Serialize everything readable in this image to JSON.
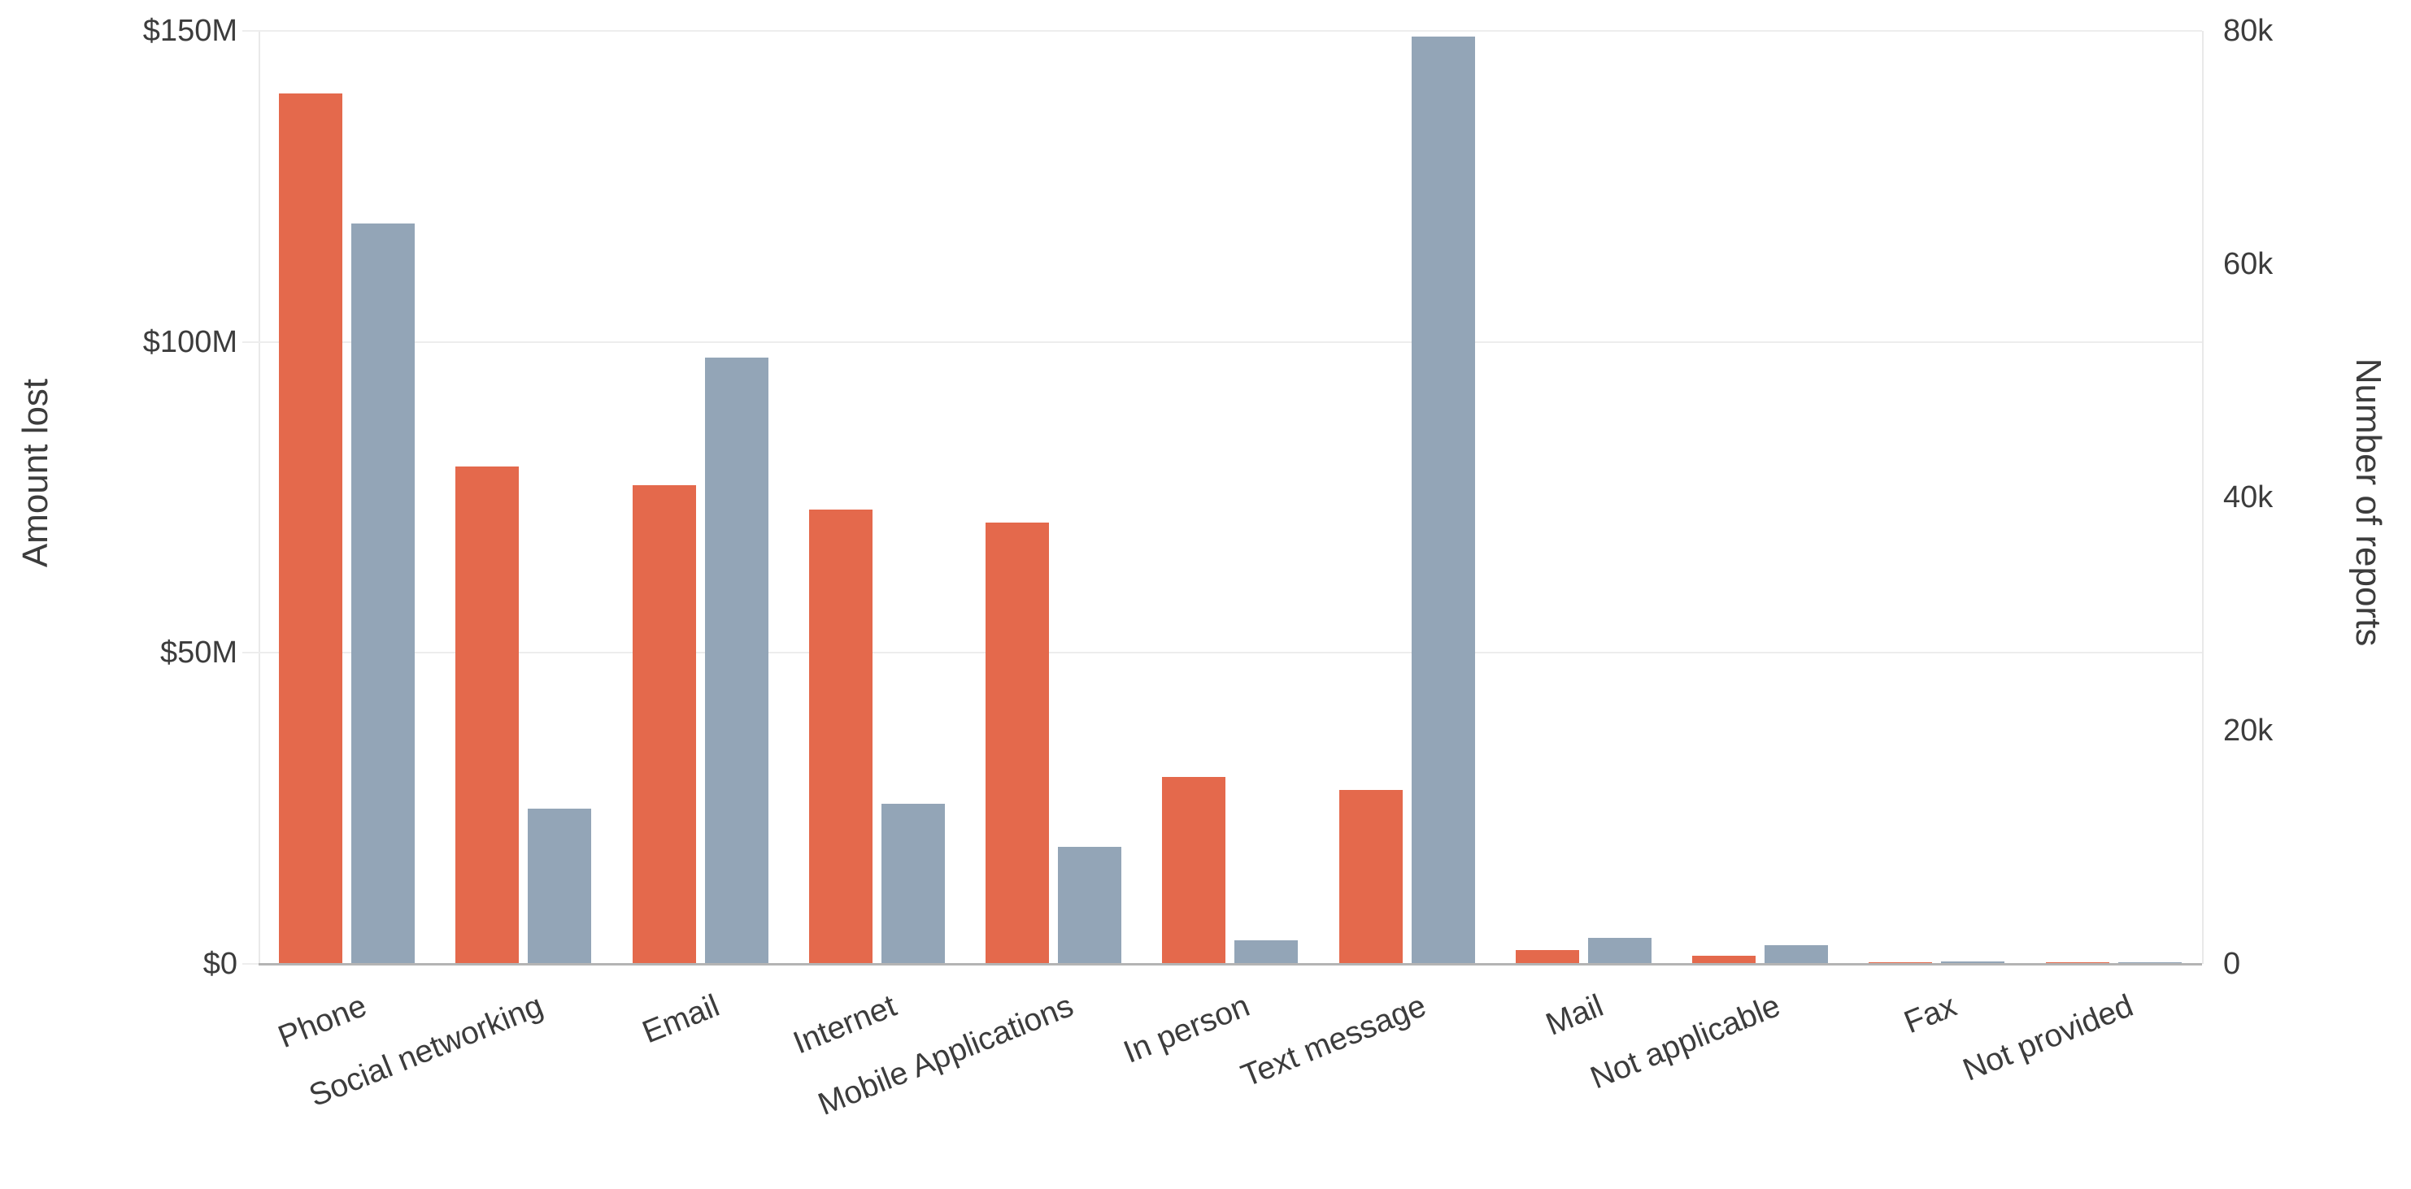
{
  "chart_data": {
    "type": "bar",
    "title": "",
    "legend": "none",
    "grid": "horizontal gridlines at left-axis $50M intervals",
    "categories": [
      "Phone",
      "Social networking",
      "Email",
      "Internet",
      "Mobile Applications",
      "In person",
      "Text message",
      "Mail",
      "Not applicable",
      "Fax",
      "Not provided"
    ],
    "series": [
      {
        "name": "Amount lost",
        "axis": "left",
        "unit": "million USD",
        "color": "#E4694C",
        "values": [
          140,
          80,
          77,
          73,
          71,
          30,
          28,
          2.2,
          1.3,
          0.2,
          0.1
        ]
      },
      {
        "name": "Number of reports",
        "axis": "right",
        "unit": "thousand reports",
        "color": "#93A5B7",
        "values": [
          63.5,
          13.3,
          52,
          13.7,
          10,
          2,
          79.5,
          2.2,
          1.6,
          0.2,
          0.1
        ]
      }
    ],
    "left_axis": {
      "title": "Amount lost",
      "tick_labels": [
        "$0",
        "$50M",
        "$100M",
        "$150M"
      ],
      "tick_values": [
        0,
        50,
        100,
        150
      ],
      "min": 0,
      "max": 150
    },
    "right_axis": {
      "title": "Number of reports",
      "tick_labels": [
        "0",
        "20k",
        "40k",
        "60k",
        "80k"
      ],
      "tick_values": [
        0,
        20,
        40,
        60,
        80
      ],
      "min": 0,
      "max": 80
    }
  },
  "colors": {
    "amount_lost": "#E4694C",
    "number_of_reports": "#93A5B7",
    "axis_text": "#3C3C3C",
    "gridline": "#EDEDED",
    "baseline": "#B4B4B4",
    "plot_border": "#E9E9E9",
    "background": "#FFFFFF"
  }
}
